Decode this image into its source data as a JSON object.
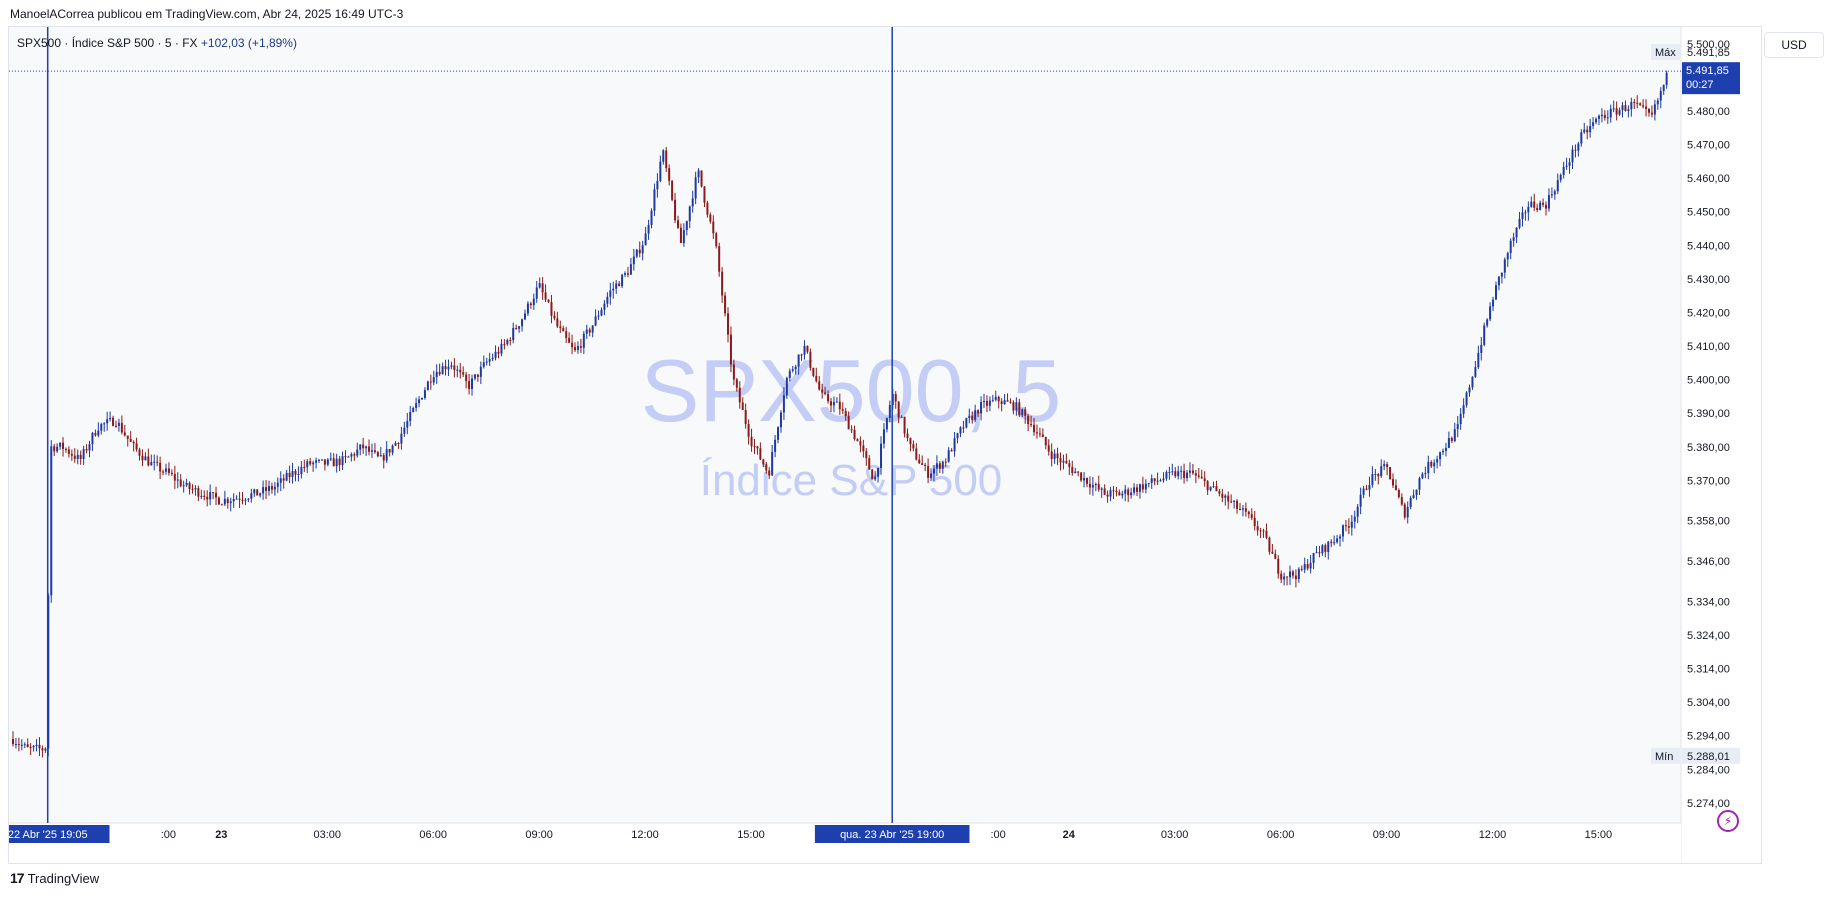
{
  "header": {
    "published_text": "ManoelACorrea publicou em TradingView.com, Abr 24, 2025 16:49 UTC-3"
  },
  "symbol": {
    "name": "SPX500 · Índice S&P 500 · 5 · FX",
    "change": "+102,03 (+1,89%)"
  },
  "watermark": {
    "line1": "SPX500, 5",
    "line2": "Índice S&P 500"
  },
  "currency_button": "USD",
  "footer": {
    "logo_mark": "17",
    "logo_text": "TradingView"
  },
  "colors": {
    "up": "#1e3a9e",
    "down": "#8b1a1a",
    "accent": "#1e40af",
    "watermark": "#c3cdf5",
    "background": "#f8f9fb"
  },
  "chart_data": {
    "type": "candlestick",
    "ylim": [
      5268,
      5505
    ],
    "y_ticks": [
      {
        "value": 5500,
        "label": "5.500,00"
      },
      {
        "value": 5480,
        "label": "5.480,00"
      },
      {
        "value": 5470,
        "label": "5.470,00"
      },
      {
        "value": 5460,
        "label": "5.460,00"
      },
      {
        "value": 5450,
        "label": "5.450,00"
      },
      {
        "value": 5440,
        "label": "5.440,00"
      },
      {
        "value": 5430,
        "label": "5.430,00"
      },
      {
        "value": 5420,
        "label": "5.420,00"
      },
      {
        "value": 5410,
        "label": "5.410,00"
      },
      {
        "value": 5400,
        "label": "5.400,00"
      },
      {
        "value": 5390,
        "label": "5.390,00"
      },
      {
        "value": 5380,
        "label": "5.380,00"
      },
      {
        "value": 5370,
        "label": "5.370,00"
      },
      {
        "value": 5358,
        "label": "5.358,00"
      },
      {
        "value": 5346,
        "label": "5.346,00"
      },
      {
        "value": 5334,
        "label": "5.334,00"
      },
      {
        "value": 5324,
        "label": "5.324,00"
      },
      {
        "value": 5314,
        "label": "5.314,00"
      },
      {
        "value": 5304,
        "label": "5.304,00"
      },
      {
        "value": 5294,
        "label": "5.294,00"
      },
      {
        "value": 5284,
        "label": "5.284,00"
      },
      {
        "value": 5274,
        "label": "5.274,00"
      }
    ],
    "x_ticks": [
      {
        "t": 22.5,
        "label": ":00"
      },
      {
        "t": 24,
        "label": "23"
      },
      {
        "t": 27,
        "label": "03:00"
      },
      {
        "t": 30,
        "label": "06:00"
      },
      {
        "t": 33,
        "label": "09:00"
      },
      {
        "t": 36,
        "label": "12:00"
      },
      {
        "t": 39,
        "label": "15:00"
      },
      {
        "t": 46,
        "label": ":00"
      },
      {
        "t": 48,
        "label": "24"
      },
      {
        "t": 51,
        "label": "03:00"
      },
      {
        "t": 54,
        "label": "06:00"
      },
      {
        "t": 57,
        "label": "09:00"
      },
      {
        "t": 60,
        "label": "12:00"
      },
      {
        "t": 63,
        "label": "15:00"
      }
    ],
    "x_range": [
      18.1,
      65
    ],
    "vertical_markers": [
      {
        "t": 19.083,
        "label": "22 Abr '25   19:05"
      },
      {
        "t": 43.0,
        "label": "qua. 23 Abr '25   19:00"
      }
    ],
    "current_price": {
      "value": 5491.85,
      "label": "5.491,85",
      "countdown": "00:27"
    },
    "max": {
      "label": "Máx",
      "value": 5491.85,
      "value_label": "5.491,85"
    },
    "min": {
      "label": "Mín",
      "value": 5288.01,
      "value_label": "5.288,01"
    },
    "path": [
      [
        18.1,
        5293
      ],
      [
        18.5,
        5290
      ],
      [
        19.0,
        5290
      ],
      [
        19.05,
        5292
      ],
      [
        19.15,
        5380
      ],
      [
        19.5,
        5380
      ],
      [
        20.0,
        5376
      ],
      [
        20.5,
        5386
      ],
      [
        21.0,
        5388
      ],
      [
        21.5,
        5380
      ],
      [
        22.0,
        5375
      ],
      [
        22.5,
        5372
      ],
      [
        23.0,
        5368
      ],
      [
        23.5,
        5366
      ],
      [
        24.0,
        5364
      ],
      [
        24.5,
        5365
      ],
      [
        25.0,
        5366
      ],
      [
        25.5,
        5368
      ],
      [
        26.0,
        5372
      ],
      [
        26.5,
        5375
      ],
      [
        27.0,
        5375
      ],
      [
        27.5,
        5376
      ],
      [
        28.0,
        5380
      ],
      [
        28.5,
        5376
      ],
      [
        29.0,
        5382
      ],
      [
        29.5,
        5392
      ],
      [
        30.0,
        5402
      ],
      [
        30.5,
        5405
      ],
      [
        31.0,
        5398
      ],
      [
        31.5,
        5405
      ],
      [
        32.0,
        5410
      ],
      [
        32.5,
        5418
      ],
      [
        33.0,
        5428
      ],
      [
        33.5,
        5416
      ],
      [
        34.0,
        5408
      ],
      [
        34.5,
        5416
      ],
      [
        35.0,
        5426
      ],
      [
        35.5,
        5432
      ],
      [
        36.0,
        5442
      ],
      [
        36.5,
        5468
      ],
      [
        37.0,
        5440
      ],
      [
        37.5,
        5462
      ],
      [
        38.0,
        5440
      ],
      [
        38.5,
        5400
      ],
      [
        39.0,
        5382
      ],
      [
        39.5,
        5372
      ],
      [
        40.0,
        5400
      ],
      [
        40.5,
        5410
      ],
      [
        41.0,
        5395
      ],
      [
        41.5,
        5392
      ],
      [
        42.0,
        5382
      ],
      [
        42.5,
        5370
      ],
      [
        43.0,
        5396
      ],
      [
        43.5,
        5380
      ],
      [
        44.0,
        5372
      ],
      [
        44.5,
        5376
      ],
      [
        45.0,
        5386
      ],
      [
        45.5,
        5392
      ],
      [
        46.0,
        5394
      ],
      [
        46.5,
        5392
      ],
      [
        47.0,
        5386
      ],
      [
        47.5,
        5378
      ],
      [
        48.0,
        5374
      ],
      [
        48.5,
        5370
      ],
      [
        49.0,
        5366
      ],
      [
        49.5,
        5366
      ],
      [
        50.0,
        5368
      ],
      [
        50.5,
        5370
      ],
      [
        51.0,
        5372
      ],
      [
        51.5,
        5372
      ],
      [
        52.0,
        5368
      ],
      [
        52.5,
        5364
      ],
      [
        53.0,
        5360
      ],
      [
        53.5,
        5354
      ],
      [
        54.0,
        5342
      ],
      [
        54.5,
        5342
      ],
      [
        55.0,
        5348
      ],
      [
        55.5,
        5352
      ],
      [
        56.0,
        5358
      ],
      [
        56.5,
        5370
      ],
      [
        57.0,
        5374
      ],
      [
        57.5,
        5360
      ],
      [
        58.0,
        5372
      ],
      [
        58.5,
        5378
      ],
      [
        59.0,
        5385
      ],
      [
        59.5,
        5404
      ],
      [
        60.0,
        5424
      ],
      [
        60.5,
        5440
      ],
      [
        61.0,
        5452
      ],
      [
        61.5,
        5452
      ],
      [
        62.0,
        5462
      ],
      [
        62.5,
        5472
      ],
      [
        63.0,
        5478
      ],
      [
        63.5,
        5480
      ],
      [
        64.0,
        5482
      ],
      [
        64.5,
        5478
      ],
      [
        65.0,
        5491.85
      ]
    ]
  }
}
